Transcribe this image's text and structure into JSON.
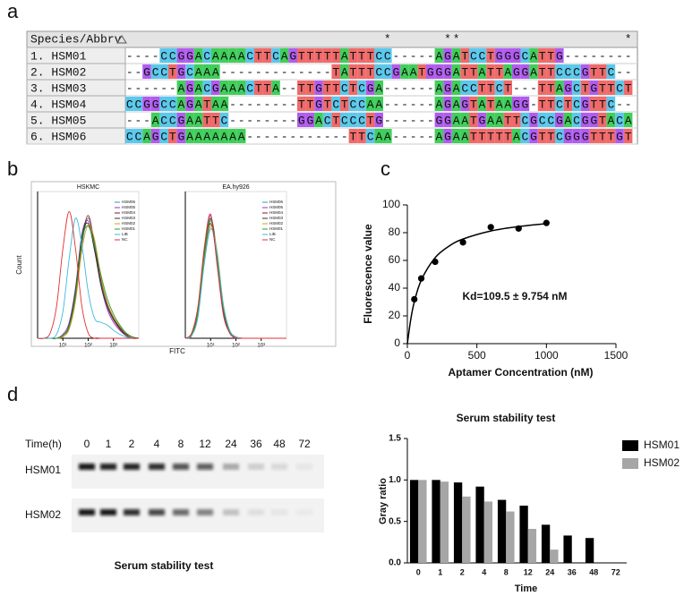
{
  "panel_labels": [
    "a",
    "b",
    "c",
    "d"
  ],
  "alignment": {
    "header": "Species/Abbrv",
    "consensus": "                              *      **                   *",
    "rows": [
      {
        "name": "1. HSM01",
        "sequence": "----CCGGACAAAACTTCAGTTTTTATTTCC-----AGATCCTGGGCATTG--------"
      },
      {
        "name": "2. HSM02",
        "sequence": "--GCCTGCAAA-------------TATTTCCGAATGGGATTATTAGGATTCCCGTTC--"
      },
      {
        "name": "3. HSM03",
        "sequence": "------AGACGAAACTTA--TTGTTCTCGA------AGACCTTCT---TTAGCTGTTCT"
      },
      {
        "name": "4. HSM04",
        "sequence": "CCGGCCAGATAA--------TTGTCTCCAA------AGAGTATAAGG-TTCTCGTTC--"
      },
      {
        "name": "5. HSM05",
        "sequence": "---ACCGAATTC--------GGACTCCCTG------GGAATGAATTCGCCGACGGTACA"
      },
      {
        "name": "6. HSM06",
        "sequence": "CCAGCTGAAAAAAA------------TTCAA-----AGAATTTTTACGTTCGGGTTTGT"
      }
    ]
  },
  "gel": {
    "time_label": "Time(h)",
    "times": [
      "0",
      "1",
      "2",
      "4",
      "8",
      "12",
      "24",
      "36",
      "48",
      "72"
    ],
    "lanes": [
      "HSM01",
      "HSM02"
    ],
    "caption": "Serum stability test"
  },
  "chart_data": [
    {
      "type": "line",
      "title": "HSKMC",
      "xlabel": "FITC",
      "ylabel": "Count",
      "xlim": [
        0,
        4
      ],
      "ylim": [
        0,
        110
      ],
      "xticks": [
        {
          "value": 1,
          "label": "10¹"
        },
        {
          "value": 2,
          "label": "10²"
        },
        {
          "value": 3,
          "label": "10³"
        }
      ],
      "x": [
        0,
        0.25,
        0.5,
        0.75,
        1,
        1.25,
        1.5,
        1.75,
        2,
        2.25,
        2.5,
        2.75,
        3,
        3.25,
        3.5,
        3.75,
        4
      ],
      "series": [
        {
          "name": "HSM06",
          "color": "#2aa198",
          "values": [
            0,
            0,
            0,
            0,
            2,
            8,
            30,
            70,
            90,
            72,
            42,
            24,
            14,
            8,
            3,
            1,
            0
          ]
        },
        {
          "name": "HSM05",
          "color": "#9b30c8",
          "values": [
            0,
            0,
            0,
            0,
            3,
            12,
            38,
            78,
            88,
            68,
            40,
            22,
            12,
            6,
            2,
            0,
            0
          ]
        },
        {
          "name": "HSM04",
          "color": "#8b1a1a",
          "values": [
            0,
            0,
            0,
            0,
            2,
            9,
            32,
            72,
            92,
            70,
            44,
            26,
            15,
            8,
            3,
            1,
            0
          ]
        },
        {
          "name": "HSM03",
          "color": "#333333",
          "values": [
            0,
            0,
            0,
            0,
            2,
            10,
            36,
            76,
            86,
            66,
            40,
            24,
            14,
            7,
            2,
            0,
            0
          ]
        },
        {
          "name": "HSM02",
          "color": "#c8a020",
          "values": [
            0,
            0,
            0,
            0,
            1,
            7,
            28,
            66,
            85,
            74,
            46,
            27,
            16,
            9,
            4,
            1,
            0
          ]
        },
        {
          "name": "HSM01",
          "color": "#2ca02c",
          "values": [
            0,
            0,
            0,
            0,
            2,
            9,
            33,
            74,
            84,
            70,
            48,
            30,
            18,
            10,
            4,
            1,
            0
          ]
        },
        {
          "name": "LIB",
          "color": "#3bb8e0",
          "values": [
            0,
            0,
            0,
            3,
            20,
            60,
            90,
            70,
            35,
            15,
            12,
            10,
            6,
            3,
            1,
            0,
            0
          ]
        },
        {
          "name": "NC",
          "color": "#e03030",
          "values": [
            0,
            0,
            4,
            24,
            67,
            95,
            67,
            24,
            4,
            0,
            0,
            0,
            0,
            0,
            0,
            0,
            0
          ]
        }
      ]
    },
    {
      "type": "line",
      "title": "EA.hy926",
      "xlim": [
        0,
        4
      ],
      "ylim": [
        0,
        110
      ],
      "xticks": [
        {
          "value": 1,
          "label": "10¹"
        },
        {
          "value": 2,
          "label": "10²"
        },
        {
          "value": 3,
          "label": "10³"
        }
      ],
      "x": [
        0,
        0.25,
        0.5,
        0.75,
        1,
        1.25,
        1.5,
        1.75,
        2,
        2.25,
        2.5,
        2.75,
        3,
        3.25,
        3.5,
        3.75,
        4
      ],
      "series": [
        {
          "name": "HSM06",
          "color": "#2aa198",
          "values": [
            0,
            2,
            18,
            60,
            88,
            62,
            22,
            5,
            1,
            0,
            0,
            0,
            0,
            0,
            0,
            0,
            0
          ]
        },
        {
          "name": "HSM05",
          "color": "#9b30c8",
          "values": [
            0,
            3,
            22,
            66,
            92,
            58,
            20,
            4,
            1,
            0,
            0,
            0,
            0,
            0,
            0,
            0,
            0
          ]
        },
        {
          "name": "HSM04",
          "color": "#8b1a1a",
          "values": [
            0,
            2,
            20,
            64,
            86,
            60,
            24,
            6,
            1,
            0,
            0,
            0,
            0,
            0,
            0,
            0,
            0
          ]
        },
        {
          "name": "HSM03",
          "color": "#333333",
          "values": [
            0,
            3,
            19,
            61,
            90,
            64,
            22,
            5,
            1,
            0,
            0,
            0,
            0,
            0,
            0,
            0,
            0
          ]
        },
        {
          "name": "HSM02",
          "color": "#c8a020",
          "values": [
            0,
            2,
            17,
            58,
            84,
            66,
            26,
            6,
            1,
            0,
            0,
            0,
            0,
            0,
            0,
            0,
            0
          ]
        },
        {
          "name": "HSM01",
          "color": "#2ca02c",
          "values": [
            0,
            3,
            21,
            63,
            89,
            61,
            23,
            5,
            1,
            0,
            0,
            0,
            0,
            0,
            0,
            0,
            0
          ]
        },
        {
          "name": "LIB",
          "color": "#3bb8e0",
          "values": [
            0,
            2,
            16,
            56,
            82,
            64,
            25,
            6,
            1,
            0,
            0,
            0,
            0,
            0,
            0,
            0,
            0
          ]
        },
        {
          "name": "NC",
          "color": "#e03030",
          "values": [
            0,
            4,
            24,
            68,
            93,
            56,
            18,
            4,
            0,
            0,
            0,
            0,
            0,
            0,
            0,
            0,
            0
          ]
        }
      ]
    },
    {
      "type": "scatter",
      "xlabel": "Aptamer Concentration (nM)",
      "ylabel": "Fluorescence value",
      "annotation": "Kd=109.5 ± 9.754 nM",
      "xlim": [
        0,
        1500
      ],
      "xticks": [
        0,
        500,
        1000,
        1500
      ],
      "ylim": [
        0,
        100
      ],
      "yticks": [
        0,
        20,
        40,
        60,
        80,
        100
      ],
      "series": [
        {
          "color": "#000000",
          "x": [
            50,
            100,
            200,
            400,
            600,
            800,
            1000
          ],
          "values": [
            32,
            47,
            59,
            73,
            84,
            83,
            87
          ]
        }
      ],
      "fit": {
        "x": [
          0,
          25,
          50,
          100,
          200,
          300,
          400,
          600,
          800,
          1000
        ],
        "values": [
          0,
          17.8,
          30.1,
          45.8,
          62.0,
          70.3,
          75.4,
          81.2,
          84.4,
          86.5
        ]
      }
    },
    {
      "type": "bar",
      "title": "Serum stability test",
      "xlabel": "Time",
      "ylabel": "Gray ratio",
      "legend": "right",
      "categories": [
        "0",
        "1",
        "2",
        "4",
        "8",
        "12",
        "24",
        "36",
        "48",
        "72"
      ],
      "ylim": [
        0,
        1.5
      ],
      "yticks": [
        {
          "value": 0,
          "label": "0.0"
        },
        0.5,
        {
          "value": 1,
          "label": "1.0"
        },
        1.5
      ],
      "series": [
        {
          "name": "HSM01",
          "color": "#000000",
          "values": [
            1.0,
            1.0,
            0.97,
            0.92,
            0.76,
            0.69,
            0.46,
            0.33,
            0.3,
            null
          ]
        },
        {
          "name": "HSM02",
          "color": "#a6a6a6",
          "values": [
            1.0,
            0.98,
            0.8,
            0.74,
            0.62,
            0.41,
            0.16,
            null,
            null,
            null
          ]
        }
      ]
    }
  ]
}
